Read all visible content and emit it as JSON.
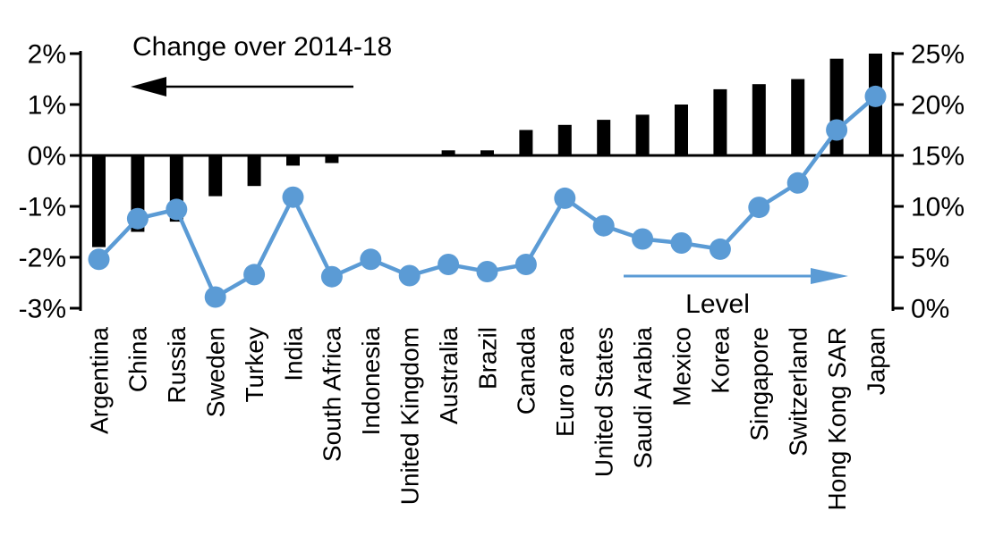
{
  "annotations": {
    "change_label": "Change over 2014-18",
    "level_label": "Level"
  },
  "colors": {
    "bar": "#000000",
    "line": "#5B9BD5",
    "axis": "#000000",
    "background": "#FFFFFF"
  },
  "chart_data": {
    "type": "combo",
    "title": "",
    "grid": false,
    "legend_position": "none",
    "categories": [
      "Argentina",
      "China",
      "Russia",
      "Sweden",
      "Turkey",
      "India",
      "South Africa",
      "Indonesia",
      "United Kingdom",
      "Australia",
      "Brazil",
      "Canada",
      "Euro area",
      "United States",
      "Saudi Arabia",
      "Mexico",
      "Korea",
      "Singapore",
      "Switzerland",
      "Hong Kong SAR",
      "Japan"
    ],
    "series": [
      {
        "name": "Change over 2014-18",
        "type": "bar",
        "axis": "left",
        "color": "#000000",
        "values": [
          -1.8,
          -1.5,
          -1.3,
          -0.8,
          -0.6,
          -0.2,
          -0.15,
          0,
          0,
          0.1,
          0.1,
          0.5,
          0.6,
          0.7,
          0.8,
          1.0,
          1.3,
          1.4,
          1.5,
          1.9,
          2.0
        ]
      },
      {
        "name": "Level",
        "type": "line",
        "axis": "right",
        "color": "#5B9BD5",
        "values": [
          4.8,
          8.8,
          9.7,
          1.1,
          3.3,
          10.9,
          3.1,
          4.8,
          3.2,
          4.3,
          3.6,
          4.3,
          10.8,
          8.1,
          6.8,
          6.4,
          5.8,
          9.9,
          12.3,
          17.5,
          20.8
        ]
      }
    ],
    "left_axis": {
      "min": -3,
      "max": 2,
      "tick_values": [
        2,
        1,
        0,
        -1,
        -2,
        -3
      ],
      "tick_labels": [
        "2%",
        "1%",
        "0%",
        "-1%",
        "-2%",
        "-3%"
      ]
    },
    "right_axis": {
      "min": 0,
      "max": 25,
      "tick_values": [
        25,
        20,
        15,
        10,
        5,
        0
      ],
      "tick_labels": [
        "25%",
        "20%",
        "15%",
        "10%",
        "5%",
        "0%"
      ]
    }
  }
}
